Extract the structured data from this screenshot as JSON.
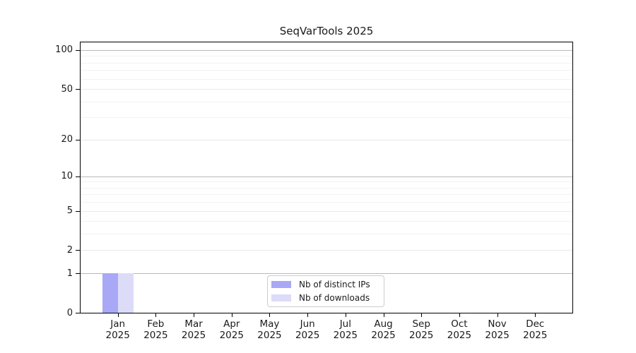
{
  "chart_data": {
    "type": "bar",
    "title": "SeqVarTools 2025",
    "categories": [
      "Jan 2025",
      "Feb 2025",
      "Mar 2025",
      "Apr 2025",
      "May 2025",
      "Jun 2025",
      "Jul 2025",
      "Aug 2025",
      "Sep 2025",
      "Oct 2025",
      "Nov 2025",
      "Dec 2025"
    ],
    "series": [
      {
        "name": "Nb of distinct IPs",
        "color": "#a8a8f6",
        "values": [
          1,
          0,
          0,
          0,
          0,
          0,
          0,
          0,
          0,
          0,
          0,
          0
        ]
      },
      {
        "name": "Nb of downloads",
        "color": "#dcdcf8",
        "values": [
          1,
          0,
          0,
          0,
          0,
          0,
          0,
          0,
          0,
          0,
          0,
          0
        ]
      }
    ],
    "xlabel": "",
    "ylabel": "",
    "yscale": "log1p",
    "ylim": [
      0,
      114
    ],
    "y_ticks": [
      0,
      1,
      2,
      5,
      10,
      20,
      50,
      100
    ],
    "y_minor_gridlines": [
      3,
      4,
      6,
      7,
      8,
      9,
      30,
      40,
      60,
      70,
      80,
      90
    ],
    "grid": true,
    "legend_position": "lower center",
    "colors": {
      "decade_grid": "#b9b9b9",
      "major_grid": "#e9e9e9",
      "minor_grid": "#f2f2f2",
      "spine": "#000000",
      "legend_border": "#cccccc",
      "background": "#ffffff",
      "text": "#1a1a1a"
    }
  }
}
